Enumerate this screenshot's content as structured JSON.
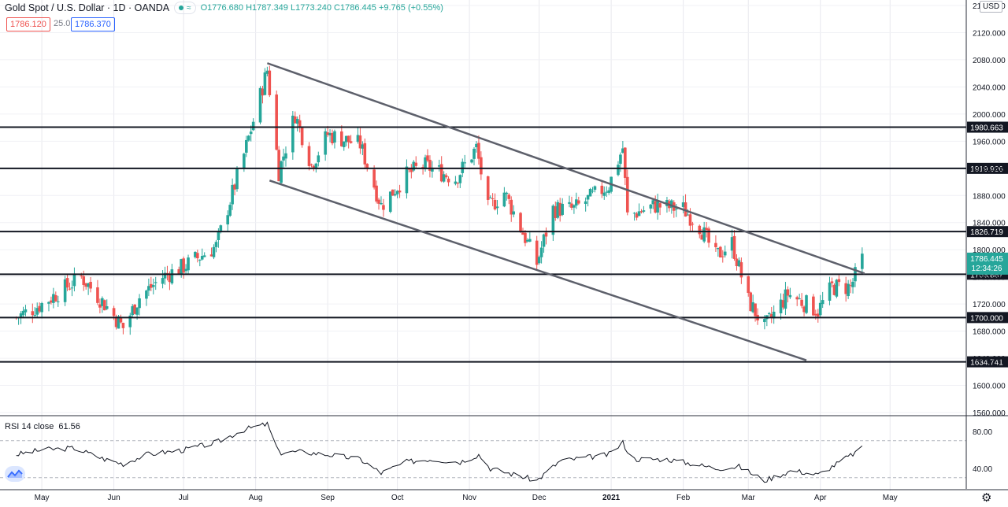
{
  "header": {
    "symbol": "Gold Spot / U.S. Dollar · 1D · OANDA",
    "indicator_glyph": "≈",
    "open": "O1776.680",
    "high": "H1787.349",
    "low": "L1773.240",
    "close": "C1786.445",
    "change": "+9.765 (+0.55%)"
  },
  "trade": {
    "sell": "1786.120",
    "spread": "25.0",
    "buy": "1786.370"
  },
  "currency_label": "USD",
  "rsi_label": "RSI 14 close",
  "rsi_value": "61.56",
  "colors": {
    "up": "#26a69a",
    "down": "#ef5350",
    "line": "#131722",
    "channel": "#5d606b",
    "grid": "#e8e8ee"
  },
  "chart_data": {
    "type": "candlestick",
    "x_labels": [
      "May",
      "Jun",
      "Jul",
      "Aug",
      "Sep",
      "Oct",
      "Nov",
      "Dec",
      "2021",
      "Feb",
      "Mar",
      "Apr",
      "May"
    ],
    "y_ticks": [
      "2160.000",
      "2120.000",
      "2080.000",
      "2040.000",
      "2000.000",
      "1960.000",
      "1920.000",
      "1880.000",
      "1840.000",
      "1800.000",
      "1760.000",
      "1720.000",
      "1680.000",
      "1640.000",
      "1600.000",
      "1560.000"
    ],
    "ylim": [
      1560,
      2160
    ],
    "current_price": "1786.445",
    "countdown": "12:34:26",
    "horizontal_levels": [
      "1980.663",
      "1919.926",
      "1826.719",
      "1763.887",
      "1700.000",
      "1634.741"
    ],
    "channel": {
      "upper": [
        [
          "2020-08-06",
          2075
        ],
        [
          "2021-04-20",
          1765
        ]
      ],
      "lower": [
        [
          "2020-08-07",
          1902
        ],
        [
          "2021-03-26",
          1637
        ]
      ]
    },
    "ohlc_path": [
      [
        "2020-04-20",
        1700
      ],
      [
        "2020-05-01",
        1720
      ],
      [
        "2020-05-18",
        1760
      ],
      [
        "2020-05-28",
        1720
      ],
      [
        "2020-06-05",
        1685
      ],
      [
        "2020-06-12",
        1730
      ],
      [
        "2020-06-22",
        1760
      ],
      [
        "2020-07-01",
        1775
      ],
      [
        "2020-07-15",
        1805
      ],
      [
        "2020-07-27",
        1940
      ],
      [
        "2020-08-06",
        2065
      ],
      [
        "2020-08-11",
        1915
      ],
      [
        "2020-08-18",
        2000
      ],
      [
        "2020-08-25",
        1925
      ],
      [
        "2020-09-01",
        1970
      ],
      [
        "2020-09-15",
        1955
      ],
      [
        "2020-09-24",
        1865
      ],
      [
        "2020-10-05",
        1910
      ],
      [
        "2020-10-12",
        1925
      ],
      [
        "2020-10-26",
        1905
      ],
      [
        "2020-11-04",
        1950
      ],
      [
        "2020-11-09",
        1860
      ],
      [
        "2020-11-16",
        1885
      ],
      [
        "2020-11-30",
        1780
      ],
      [
        "2020-12-07",
        1860
      ],
      [
        "2020-12-16",
        1860
      ],
      [
        "2020-12-31",
        1895
      ],
      [
        "2021-01-06",
        1950
      ],
      [
        "2021-01-08",
        1850
      ],
      [
        "2021-01-20",
        1865
      ],
      [
        "2021-02-01",
        1860
      ],
      [
        "2021-02-08",
        1835
      ],
      [
        "2021-02-15",
        1790
      ],
      [
        "2021-02-22",
        1810
      ],
      [
        "2021-03-01",
        1725
      ],
      [
        "2021-03-08",
        1685
      ],
      [
        "2021-03-18",
        1735
      ],
      [
        "2021-03-31",
        1710
      ],
      [
        "2021-04-06",
        1745
      ],
      [
        "2021-04-14",
        1745
      ],
      [
        "2021-04-19",
        1786
      ]
    ],
    "rsi": {
      "label": "RSI 14 close",
      "ylim": [
        20,
        95
      ],
      "ticks": [
        "80.00",
        "40.00"
      ],
      "bands": [
        70,
        30
      ],
      "points": [
        [
          "2020-04-20",
          55
        ],
        [
          "2020-05-01",
          60
        ],
        [
          "2020-05-15",
          62
        ],
        [
          "2020-05-28",
          50
        ],
        [
          "2020-06-05",
          45
        ],
        [
          "2020-06-15",
          55
        ],
        [
          "2020-07-01",
          60
        ],
        [
          "2020-07-15",
          68
        ],
        [
          "2020-07-27",
          82
        ],
        [
          "2020-08-06",
          88
        ],
        [
          "2020-08-11",
          57
        ],
        [
          "2020-08-20",
          58
        ],
        [
          "2020-09-01",
          55
        ],
        [
          "2020-09-15",
          50
        ],
        [
          "2020-09-24",
          35
        ],
        [
          "2020-10-05",
          47
        ],
        [
          "2020-10-15",
          50
        ],
        [
          "2020-10-28",
          47
        ],
        [
          "2020-11-05",
          55
        ],
        [
          "2020-11-10",
          40
        ],
        [
          "2020-11-30",
          27
        ],
        [
          "2020-12-10",
          48
        ],
        [
          "2020-12-31",
          55
        ],
        [
          "2021-01-06",
          68
        ],
        [
          "2021-01-10",
          50
        ],
        [
          "2021-01-25",
          50
        ],
        [
          "2021-02-05",
          45
        ],
        [
          "2021-02-15",
          40
        ],
        [
          "2021-02-25",
          42
        ],
        [
          "2021-03-08",
          27
        ],
        [
          "2021-03-20",
          38
        ],
        [
          "2021-03-31",
          33
        ],
        [
          "2021-04-08",
          45
        ],
        [
          "2021-04-19",
          61.56
        ]
      ]
    }
  }
}
